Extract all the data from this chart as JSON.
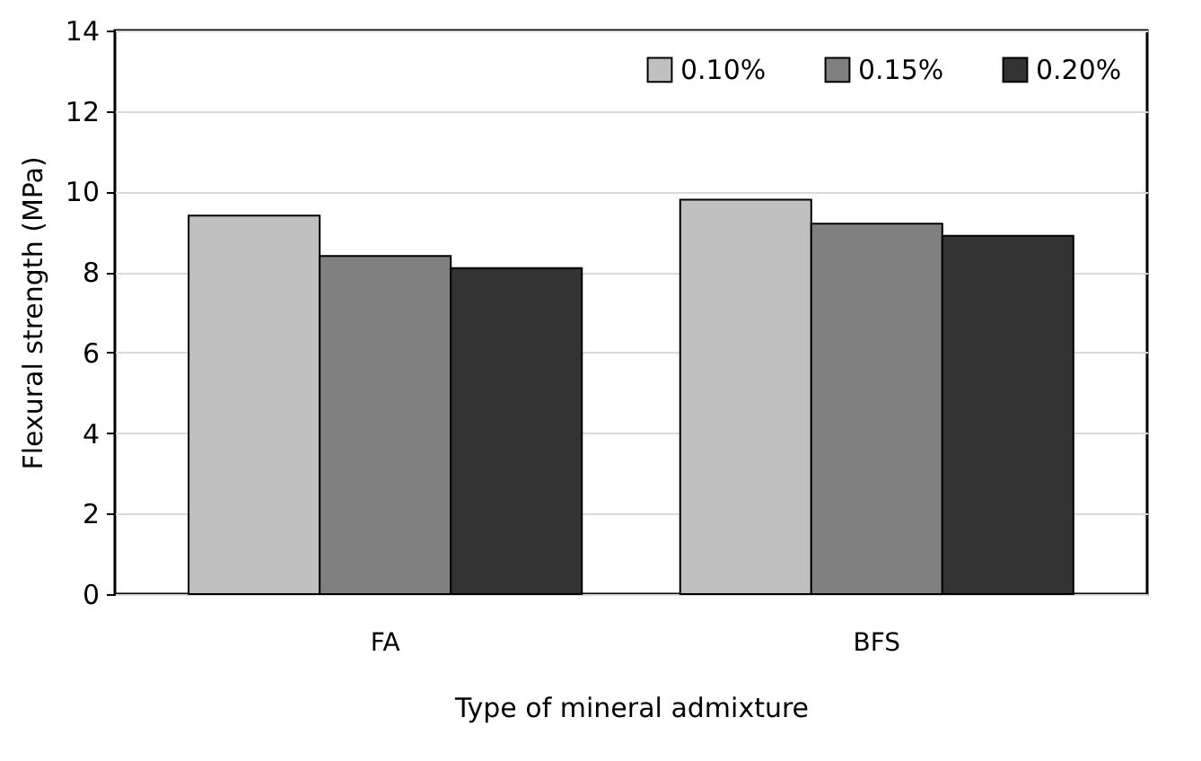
{
  "chart_data": {
    "type": "bar",
    "xlabel": "Type of mineral admixture",
    "ylabel": "Flexural strength (MPa)",
    "categories": [
      "FA",
      "BFS"
    ],
    "series": [
      {
        "name": "0.10%",
        "color": "#c0c0c0",
        "values": [
          9.4,
          9.8
        ]
      },
      {
        "name": "0.15%",
        "color": "#808080",
        "values": [
          8.4,
          9.2
        ]
      },
      {
        "name": "0.20%",
        "color": "#333333",
        "values": [
          8.1,
          8.9
        ]
      }
    ],
    "ylim": [
      0,
      14
    ],
    "yticks": [
      0,
      2,
      4,
      6,
      8,
      10,
      12,
      14
    ],
    "grid": "y",
    "legend": "top right"
  }
}
